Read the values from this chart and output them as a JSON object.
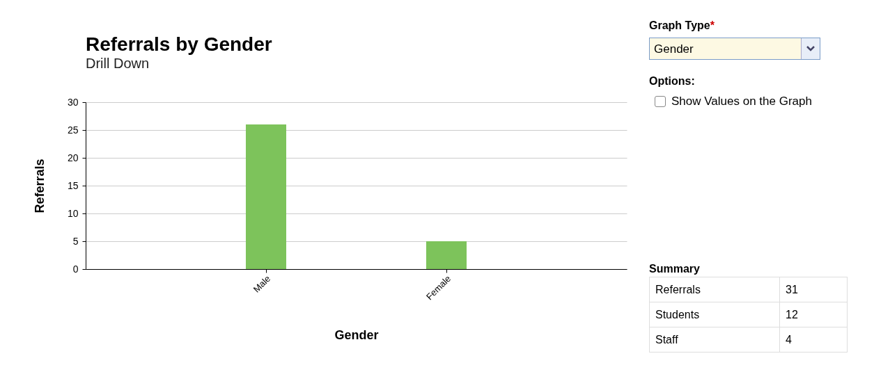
{
  "chart_data": [
    {
      "type": "bar",
      "title": "Referrals by Gender",
      "subtitle": "Drill Down",
      "xlabel": "Gender",
      "ylabel": "Referrals",
      "categories": [
        "Male",
        "Female"
      ],
      "values": [
        26,
        5
      ],
      "color": "#7dc35b",
      "ylim": [
        0,
        30
      ],
      "yticks": [
        0,
        5,
        10,
        15,
        20,
        25,
        30
      ],
      "grid": "y"
    },
    {
      "type": "other",
      "annotations": [
        "Graph Type",
        "*",
        "Gender",
        "Options:",
        "Show Values on the Graph",
        "Summary",
        "Referrals",
        "31",
        "Students",
        "12",
        "Staff",
        "4"
      ]
    }
  ]
}
